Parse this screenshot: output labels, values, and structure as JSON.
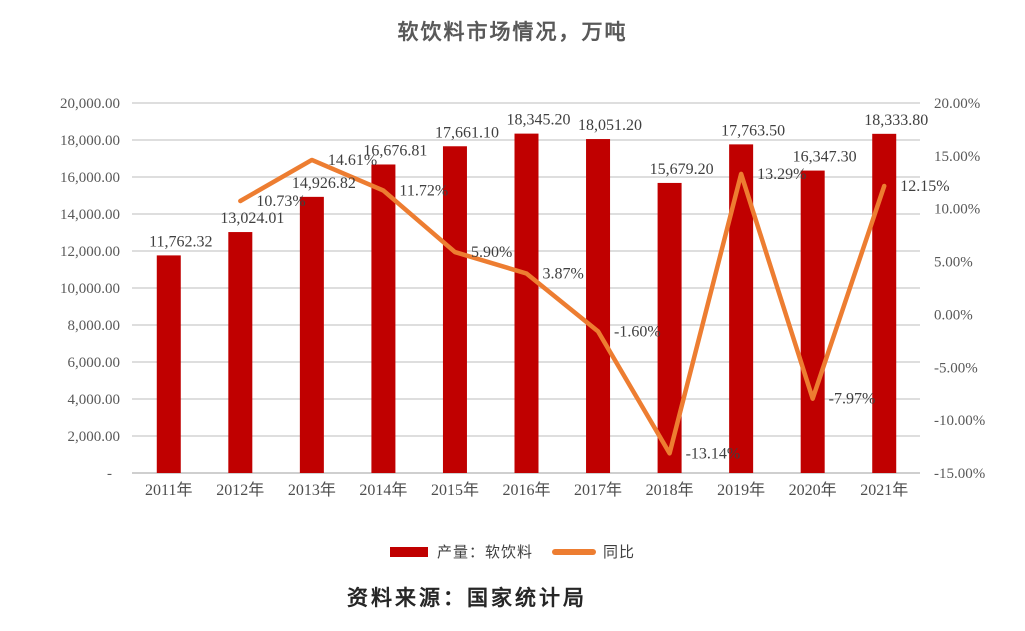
{
  "chart_data": {
    "type": "bar+line combo",
    "title": "软饮料市场情况，万吨",
    "categories": [
      "2011年",
      "2012年",
      "2013年",
      "2014年",
      "2015年",
      "2016年",
      "2017年",
      "2018年",
      "2019年",
      "2020年",
      "2021年"
    ],
    "series": [
      {
        "name": "产量：软饮料",
        "type": "bar",
        "axis": "left",
        "color": "#C00000",
        "values": [
          11762.32,
          13024.01,
          14926.82,
          16676.81,
          17661.1,
          18345.2,
          18051.2,
          15679.2,
          17763.5,
          16347.3,
          18333.8
        ],
        "labels": [
          "11,762.32",
          "13,024.01",
          "14,926.82",
          "16,676.81",
          "17,661.10",
          "18,345.20",
          "18,051.20",
          "15,679.20",
          "17,763.50",
          "16,347.30",
          "18,333.80"
        ]
      },
      {
        "name": "同比",
        "type": "line",
        "axis": "right",
        "color": "#ED7D31",
        "values": [
          null,
          10.73,
          14.61,
          11.72,
          5.9,
          3.87,
          -1.6,
          -13.14,
          13.29,
          -7.97,
          12.15
        ],
        "labels": [
          null,
          "10.73%",
          "14.61%",
          "11.72%",
          "5.90%",
          "3.87%",
          "-1.60%",
          "-13.14%",
          "13.29%",
          "-7.97%",
          "12.15%"
        ]
      }
    ],
    "left_axis": {
      "min": 0,
      "max": 20000,
      "step": 2000,
      "tick_labels": [
        "20,000.00",
        "18,000.00",
        "16,000.00",
        "14,000.00",
        "12,000.00",
        "10,000.00",
        "8,000.00",
        "6,000.00",
        "4,000.00",
        "2,000.00",
        "-"
      ]
    },
    "right_axis": {
      "min": -15,
      "max": 20,
      "step": 5,
      "tick_labels": [
        "20.00%",
        "15.00%",
        "10.00%",
        "5.00%",
        "0.00%",
        "-5.00%",
        "-10.00%",
        "-15.00%"
      ]
    },
    "grid": "horizontal",
    "grid_color": "#D9D9D9",
    "legend_position": "bottom",
    "source": "资料来源：国家统计局"
  }
}
